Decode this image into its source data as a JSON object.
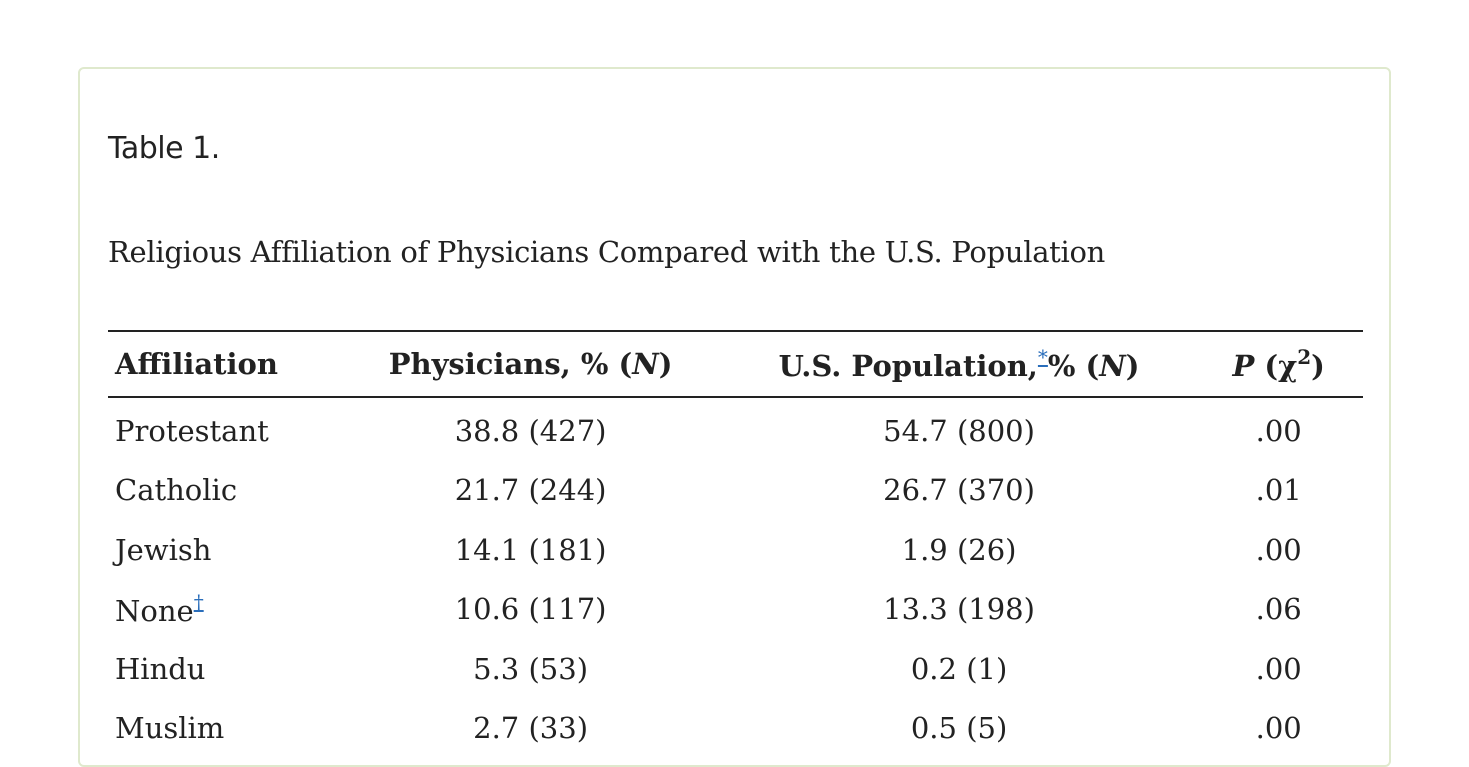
{
  "table": {
    "label": "Table 1.",
    "title": "Religious Affiliation of Physicians Compared with the U.S. Population",
    "headers": {
      "affiliation": "Affiliation",
      "physicians_prefix": "Physicians, % (",
      "physicians_n": "N",
      "physicians_suffix": ")",
      "us_prefix": "U.S. Population,",
      "us_footnote": "*",
      "us_middle": "% (",
      "us_n": "N",
      "us_suffix": ")",
      "p_symbol": "P",
      "p_open": " (χ",
      "p_sup": "2",
      "p_close": ")"
    },
    "rows": [
      {
        "affiliation": "Protestant",
        "footnote": "",
        "physicians": "38.8 (427)",
        "us_population": "54.7 (800)",
        "p": ".00"
      },
      {
        "affiliation": "Catholic",
        "footnote": "",
        "physicians": "21.7 (244)",
        "us_population": "26.7 (370)",
        "p": ".01"
      },
      {
        "affiliation": "Jewish",
        "footnote": "",
        "physicians": "14.1 (181)",
        "us_population": "1.9 (26)",
        "p": ".00"
      },
      {
        "affiliation": "None",
        "footnote": "†",
        "physicians": "10.6 (117)",
        "us_population": "13.3 (198)",
        "p": ".06"
      },
      {
        "affiliation": "Hindu",
        "footnote": "",
        "physicians": "5.3 (53)",
        "us_population": "0.2 (1)",
        "p": ".00"
      },
      {
        "affiliation": "Muslim",
        "footnote": "",
        "physicians": "2.7 (33)",
        "us_population": "0.5 (5)",
        "p": ".00"
      }
    ]
  }
}
